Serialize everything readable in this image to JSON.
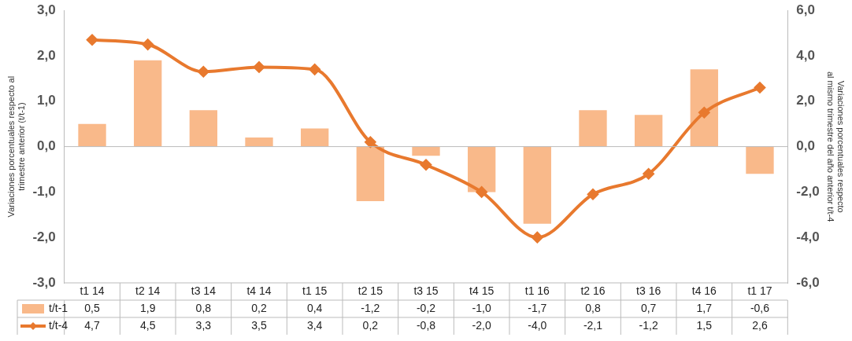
{
  "chart_data": {
    "type": "bar",
    "ylabel": "Variaciones porcentuales respecto al\ntrimestre anterior (t/t-1)",
    "y2label": "Variaciones porcentuales respecto\nal mismo trimestre del año anterior t/t-4",
    "categories": [
      "t1 14",
      "t2 14",
      "t3 14",
      "t4 14",
      "t1 15",
      "t2 15",
      "t3 15",
      "t4 15",
      "t1 16",
      "t2 16",
      "t3 16",
      "t4 16",
      "t1 17"
    ],
    "series": [
      {
        "name": "t/t-1",
        "color": "#f9b98a",
        "values": [
          0.5,
          1.9,
          0.8,
          0.2,
          0.4,
          -1.2,
          -0.2,
          -1.0,
          -1.7,
          0.8,
          0.7,
          1.7,
          -0.6
        ],
        "value_labels": [
          "0,5",
          "1,9",
          "0,8",
          "0,2",
          "0,4",
          "-1,2",
          "-0,2",
          "-1,0",
          "-1,7",
          "0,8",
          "0,7",
          "1,7",
          "-0,6"
        ]
      },
      {
        "name": "t/t-4",
        "type": "line",
        "axis": "y2",
        "color": "#e8792e",
        "marker": "diamond",
        "values": [
          4.7,
          4.5,
          3.3,
          3.5,
          3.4,
          0.2,
          -0.8,
          -2.0,
          -4.0,
          -2.1,
          -1.2,
          1.5,
          2.6
        ],
        "value_labels": [
          "4,7",
          "4,5",
          "3,3",
          "3,5",
          "3,4",
          "0,2",
          "-0,8",
          "-2,0",
          "-4,0",
          "-2,1",
          "-1,2",
          "1,5",
          "2,6"
        ]
      }
    ],
    "ylim": [
      -3,
      3
    ],
    "yticks": [
      {
        "value": -3,
        "label": "-3,0"
      },
      {
        "value": -2,
        "label": "-2,0"
      },
      {
        "value": -1,
        "label": "-1,0"
      },
      {
        "value": 0,
        "label": "0,0"
      },
      {
        "value": 1,
        "label": "1,0"
      },
      {
        "value": 2,
        "label": "2,0"
      },
      {
        "value": 3,
        "label": "3,0"
      }
    ],
    "y2lim": [
      -6,
      6
    ],
    "y2ticks": [
      {
        "value": -6,
        "label": "-6,0"
      },
      {
        "value": -4,
        "label": "-4,0"
      },
      {
        "value": -2,
        "label": "-2,0"
      },
      {
        "value": 0,
        "label": "0,0"
      },
      {
        "value": 2,
        "label": "2,0"
      },
      {
        "value": 4,
        "label": "4,0"
      },
      {
        "value": 6,
        "label": "6,0"
      }
    ],
    "legend": "bottom"
  }
}
